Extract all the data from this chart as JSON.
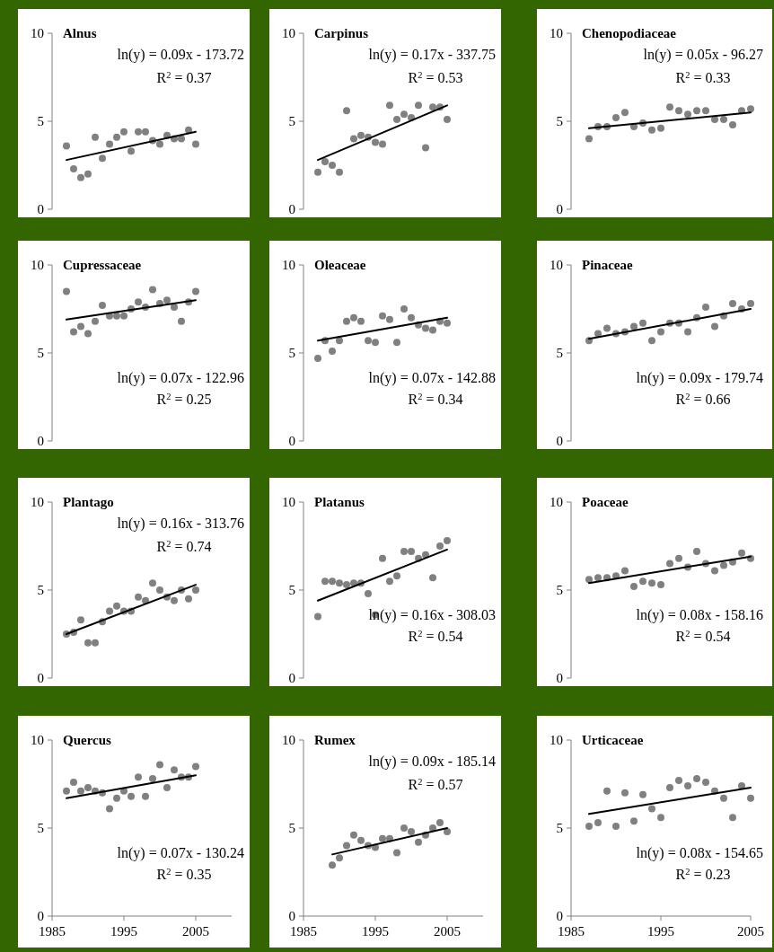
{
  "chart_data": [
    {
      "type": "scatter",
      "title": "Alnus",
      "x": [
        1987,
        1988,
        1989,
        1990,
        1991,
        1992,
        1993,
        1994,
        1995,
        1996,
        1997,
        1998,
        1999,
        2000,
        2001,
        2002,
        2003,
        2004,
        2005
      ],
      "xticks": [
        1985,
        1995,
        2005
      ],
      "ylim": [
        0,
        10
      ],
      "yticks": [
        0,
        5,
        10
      ],
      "tick_labels": "y",
      "annotations": [
        "ln(y) = 0.09x - 173.72",
        "R$^{2}$ = 0.37"
      ],
      "series": [
        {
          "marker": "circle",
          "color": "#808080",
          "values": [
            3.6,
            2.3,
            1.8,
            2.0,
            4.1,
            2.9,
            3.7,
            4.1,
            4.4,
            3.3,
            4.4,
            4.4,
            3.9,
            3.7,
            4.2,
            4.0,
            4.0,
            4.5,
            3.7
          ]
        },
        {
          "type": "line",
          "marker": "none",
          "color": "#000000",
          "x": [
            1987,
            2005
          ],
          "values": [
            2.8,
            4.4
          ]
        }
      ]
    },
    {
      "type": "scatter",
      "title": "Carpinus",
      "x": [
        1987,
        1988,
        1989,
        1990,
        1991,
        1992,
        1993,
        1994,
        1995,
        1996,
        1997,
        1998,
        1999,
        2000,
        2001,
        2002,
        2003,
        2004,
        2005
      ],
      "xticks": [
        1985,
        1995,
        2005
      ],
      "ylim": [
        0,
        10
      ],
      "yticks": [
        0,
        5,
        10
      ],
      "tick_labels": "y",
      "annotations": [
        "ln(y) = 0.17x - 337.75",
        "R$^{2}$ = 0.53"
      ],
      "series": [
        {
          "marker": "circle",
          "color": "#808080",
          "values": [
            2.1,
            2.7,
            2.5,
            2.1,
            5.6,
            4.0,
            4.2,
            4.1,
            3.8,
            3.7,
            5.9,
            5.1,
            5.4,
            5.2,
            5.9,
            3.5,
            5.8,
            5.8,
            5.1
          ]
        },
        {
          "type": "line",
          "marker": "none",
          "color": "#000000",
          "x": [
            1987,
            2005
          ],
          "values": [
            2.8,
            5.9
          ]
        }
      ]
    },
    {
      "type": "scatter",
      "title": "Chenopodiaceae",
      "x": [
        1987,
        1988,
        1989,
        1990,
        1991,
        1992,
        1993,
        1994,
        1995,
        1996,
        1997,
        1998,
        1999,
        2000,
        2001,
        2002,
        2003,
        2004,
        2005
      ],
      "xlim": [
        1985,
        2005
      ],
      "xticks": [
        1985,
        1995,
        2005
      ],
      "ylim": [
        0,
        10
      ],
      "yticks": [
        0,
        5,
        10
      ],
      "tick_labels": "y",
      "annotations": [
        "ln(y) = 0.05x - 96.27",
        "R$^{2}$ = 0.33"
      ],
      "series": [
        {
          "marker": "circle",
          "color": "#808080",
          "values": [
            4.0,
            4.7,
            4.7,
            5.2,
            5.5,
            4.7,
            4.9,
            4.5,
            4.6,
            5.8,
            5.6,
            5.4,
            5.6,
            5.6,
            5.1,
            5.1,
            4.8,
            5.6,
            5.7
          ]
        },
        {
          "type": "line",
          "marker": "none",
          "color": "#000000",
          "x": [
            1987,
            2005
          ],
          "values": [
            4.6,
            5.5
          ]
        }
      ]
    },
    {
      "type": "scatter",
      "title": "Cupressaceae",
      "x": [
        1987,
        1988,
        1989,
        1990,
        1991,
        1992,
        1993,
        1994,
        1995,
        1996,
        1997,
        1998,
        1999,
        2000,
        2001,
        2002,
        2003,
        2004,
        2005
      ],
      "xticks": [
        1985,
        1995,
        2005
      ],
      "ylim": [
        0,
        10
      ],
      "yticks": [
        0,
        5,
        10
      ],
      "tick_labels": "y",
      "annotations": [
        "ln(y) = 0.07x - 122.96",
        "R$^{2}$ = 0.25"
      ],
      "series": [
        {
          "marker": "circle",
          "color": "#808080",
          "values": [
            8.5,
            6.2,
            6.5,
            6.1,
            6.8,
            7.7,
            7.1,
            7.1,
            7.1,
            7.5,
            7.9,
            7.6,
            8.6,
            7.8,
            8.0,
            7.6,
            6.8,
            7.9,
            8.5
          ]
        },
        {
          "type": "line",
          "marker": "none",
          "color": "#000000",
          "x": [
            1987,
            2005
          ],
          "values": [
            6.9,
            8.0
          ]
        }
      ]
    },
    {
      "type": "scatter",
      "title": "Oleaceae",
      "x": [
        1987,
        1988,
        1989,
        1990,
        1991,
        1992,
        1993,
        1994,
        1995,
        1996,
        1997,
        1998,
        1999,
        2000,
        2001,
        2002,
        2003,
        2004,
        2005
      ],
      "xticks": [
        1985,
        1995,
        2005
      ],
      "ylim": [
        0,
        10
      ],
      "yticks": [
        0,
        5,
        10
      ],
      "tick_labels": "y",
      "annotations": [
        "ln(y) = 0.07x - 142.88",
        "R$^{2}$ = 0.34"
      ],
      "series": [
        {
          "marker": "circle",
          "color": "#808080",
          "values": [
            4.7,
            5.7,
            5.1,
            5.7,
            6.8,
            7.0,
            6.8,
            5.7,
            5.6,
            7.1,
            6.9,
            5.6,
            7.5,
            7.0,
            6.6,
            6.4,
            6.3,
            6.8,
            6.7
          ]
        },
        {
          "type": "line",
          "marker": "none",
          "color": "#000000",
          "x": [
            1987,
            2005
          ],
          "values": [
            5.7,
            7.0
          ]
        }
      ]
    },
    {
      "type": "scatter",
      "title": "Pinaceae",
      "x": [
        1987,
        1988,
        1989,
        1990,
        1991,
        1992,
        1993,
        1994,
        1995,
        1996,
        1997,
        1998,
        1999,
        2000,
        2001,
        2002,
        2003,
        2004,
        2005
      ],
      "xlim": [
        1985,
        2005
      ],
      "xticks": [
        1985,
        1995,
        2005
      ],
      "ylim": [
        0,
        10
      ],
      "yticks": [
        0,
        5,
        10
      ],
      "tick_labels": "y",
      "annotations": [
        "ln(y) = 0.09x - 179.74",
        "R$^{2}$ = 0.66"
      ],
      "series": [
        {
          "marker": "circle",
          "color": "#808080",
          "values": [
            5.7,
            6.1,
            6.4,
            6.1,
            6.2,
            6.5,
            6.7,
            5.7,
            6.2,
            6.7,
            6.7,
            6.2,
            7.0,
            7.6,
            6.5,
            7.1,
            7.8,
            7.5,
            7.8
          ]
        },
        {
          "type": "line",
          "marker": "none",
          "color": "#000000",
          "x": [
            1987,
            2005
          ],
          "values": [
            5.8,
            7.5
          ]
        }
      ]
    },
    {
      "type": "scatter",
      "title": "Plantago",
      "x": [
        1987,
        1988,
        1989,
        1990,
        1991,
        1992,
        1993,
        1994,
        1995,
        1996,
        1997,
        1998,
        1999,
        2000,
        2001,
        2002,
        2003,
        2004,
        2005
      ],
      "xticks": [
        1985,
        1995,
        2005
      ],
      "ylim": [
        0,
        10
      ],
      "yticks": [
        0,
        5,
        10
      ],
      "tick_labels": "y",
      "annotations": [
        "ln(y) = 0.16x - 313.76",
        "R$^{2}$ = 0.74"
      ],
      "series": [
        {
          "marker": "circle",
          "color": "#808080",
          "values": [
            2.5,
            2.6,
            3.3,
            2.0,
            2.0,
            3.2,
            3.8,
            4.1,
            3.8,
            3.8,
            4.6,
            4.4,
            5.4,
            5.0,
            4.6,
            4.4,
            5.0,
            4.5,
            5.0
          ]
        },
        {
          "type": "line",
          "marker": "none",
          "color": "#000000",
          "x": [
            1987,
            2005
          ],
          "values": [
            2.5,
            5.3
          ]
        }
      ]
    },
    {
      "type": "scatter",
      "title": "Platanus",
      "x": [
        1987,
        1988,
        1989,
        1990,
        1991,
        1992,
        1993,
        1994,
        1995,
        1996,
        1997,
        1998,
        1999,
        2000,
        2001,
        2002,
        2003,
        2004,
        2005
      ],
      "xticks": [
        1985,
        1995,
        2005
      ],
      "ylim": [
        0,
        10
      ],
      "yticks": [
        0,
        5,
        10
      ],
      "tick_labels": "y",
      "annotations": [
        "ln(y) = 0.16x - 308.03",
        "R$^{2}$ = 0.54"
      ],
      "series": [
        {
          "marker": "circle",
          "color": "#808080",
          "values": [
            3.5,
            5.5,
            5.5,
            5.4,
            5.3,
            5.4,
            5.4,
            4.8,
            3.6,
            6.8,
            5.5,
            5.8,
            7.2,
            7.2,
            6.8,
            7.0,
            5.7,
            7.5,
            7.8
          ]
        },
        {
          "type": "line",
          "marker": "none",
          "color": "#000000",
          "x": [
            1987,
            2005
          ],
          "values": [
            4.4,
            7.3
          ]
        }
      ]
    },
    {
      "type": "scatter",
      "title": "Poaceae",
      "x": [
        1987,
        1988,
        1989,
        1990,
        1991,
        1992,
        1993,
        1994,
        1995,
        1996,
        1997,
        1998,
        1999,
        2000,
        2001,
        2002,
        2003,
        2004,
        2005
      ],
      "xlim": [
        1985,
        2005
      ],
      "xticks": [
        1985,
        1995,
        2005
      ],
      "ylim": [
        0,
        10
      ],
      "yticks": [
        0,
        5,
        10
      ],
      "tick_labels": "y",
      "annotations": [
        "ln(y) = 0.08x - 158.16",
        "R$^{2}$ = 0.54"
      ],
      "series": [
        {
          "marker": "circle",
          "color": "#808080",
          "values": [
            5.6,
            5.7,
            5.7,
            5.8,
            6.1,
            5.2,
            5.5,
            5.4,
            5.3,
            6.5,
            6.8,
            6.3,
            7.2,
            6.5,
            6.1,
            6.4,
            6.6,
            7.1,
            6.8
          ]
        },
        {
          "type": "line",
          "marker": "none",
          "color": "#000000",
          "x": [
            1987,
            2005
          ],
          "values": [
            5.4,
            6.9
          ]
        }
      ]
    },
    {
      "type": "scatter",
      "title": "Quercus",
      "x": [
        1987,
        1988,
        1989,
        1990,
        1991,
        1992,
        1993,
        1994,
        1995,
        1996,
        1997,
        1998,
        1999,
        2000,
        2001,
        2002,
        2003,
        2004,
        2005
      ],
      "xlim": [
        1985,
        2010
      ],
      "xticks": [
        1985,
        1995,
        2005
      ],
      "ylim": [
        0,
        10
      ],
      "yticks": [
        0,
        5,
        10
      ],
      "annotations": [
        "ln(y) = 0.07x - 130.24",
        "R$^{2}$ = 0.35"
      ],
      "series": [
        {
          "marker": "circle",
          "color": "#808080",
          "values": [
            7.1,
            7.6,
            7.1,
            7.3,
            7.1,
            7.0,
            6.1,
            6.7,
            7.1,
            6.8,
            7.9,
            6.8,
            7.8,
            8.6,
            7.3,
            8.3,
            7.9,
            7.9,
            8.5
          ]
        },
        {
          "type": "line",
          "marker": "none",
          "color": "#000000",
          "x": [
            1987,
            2005
          ],
          "values": [
            6.7,
            8.0
          ]
        }
      ]
    },
    {
      "type": "scatter",
      "title": "Rumex",
      "x": [
        1989,
        1990,
        1991,
        1992,
        1993,
        1994,
        1995,
        1996,
        1997,
        1998,
        1999,
        2000,
        2001,
        2002,
        2003,
        2004,
        2005
      ],
      "xlim": [
        1985,
        2010
      ],
      "xticks": [
        1985,
        1995,
        2005
      ],
      "ylim": [
        0,
        10
      ],
      "yticks": [
        0,
        5,
        10
      ],
      "annotations": [
        "ln(y) = 0.09x - 185.14",
        "R$^{2}$ = 0.57"
      ],
      "series": [
        {
          "marker": "circle",
          "color": "#808080",
          "values": [
            2.9,
            3.3,
            4.0,
            4.6,
            4.3,
            4.0,
            3.9,
            4.4,
            4.4,
            3.6,
            5.0,
            4.8,
            4.2,
            4.6,
            5.0,
            5.3,
            4.8
          ]
        },
        {
          "type": "line",
          "marker": "none",
          "color": "#000000",
          "x": [
            1989,
            2005
          ],
          "values": [
            3.5,
            5.0
          ]
        }
      ]
    },
    {
      "type": "scatter",
      "title": "Urticaceae",
      "x": [
        1987,
        1988,
        1989,
        1990,
        1991,
        1992,
        1993,
        1994,
        1995,
        1996,
        1997,
        1998,
        1999,
        2000,
        2001,
        2002,
        2003,
        2004,
        2005
      ],
      "xlim": [
        1985,
        2005
      ],
      "xticks": [
        1985,
        1995,
        2005
      ],
      "ylim": [
        0,
        10
      ],
      "yticks": [
        0,
        5,
        10
      ],
      "annotations": [
        "ln(y) = 0.08x - 154.65",
        "R$^{2}$ = 0.23"
      ],
      "series": [
        {
          "marker": "circle",
          "color": "#808080",
          "values": [
            5.1,
            5.3,
            7.1,
            5.1,
            7.0,
            5.4,
            6.9,
            6.1,
            5.6,
            7.3,
            7.7,
            7.4,
            7.8,
            7.6,
            7.1,
            6.7,
            5.6,
            7.4,
            6.7
          ]
        },
        {
          "type": "line",
          "marker": "none",
          "color": "#000000",
          "x": [
            1987,
            2005
          ],
          "values": [
            5.8,
            7.3
          ]
        }
      ]
    }
  ]
}
